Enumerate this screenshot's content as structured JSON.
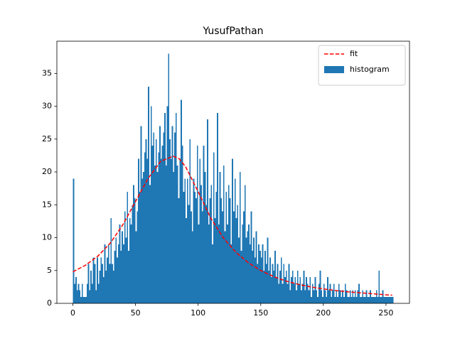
{
  "chart_data": {
    "type": "histogram",
    "title": "YusufPathan",
    "xlim": [
      -12.8,
      268.8
    ],
    "ylim": [
      0,
      39.9
    ],
    "xticks": [
      0,
      50,
      100,
      150,
      200,
      250
    ],
    "yticks": [
      0,
      5,
      10,
      15,
      20,
      25,
      30,
      35
    ],
    "legend": "upper right",
    "series": [
      {
        "name": "histogram",
        "type": "histogram",
        "color": "#1f77b4",
        "bins": [
          0,
          1,
          2,
          3,
          4,
          5,
          6,
          7,
          8,
          9,
          10,
          11,
          12,
          13,
          14,
          15,
          16,
          17,
          18,
          19,
          20,
          21,
          22,
          23,
          24,
          25,
          26,
          27,
          28,
          29,
          30,
          31,
          32,
          33,
          34,
          35,
          36,
          37,
          38,
          39,
          40,
          41,
          42,
          43,
          44,
          45,
          46,
          47,
          48,
          49,
          50,
          51,
          52,
          53,
          54,
          55,
          56,
          57,
          58,
          59,
          60,
          61,
          62,
          63,
          64,
          65,
          66,
          67,
          68,
          69,
          70,
          71,
          72,
          73,
          74,
          75,
          76,
          77,
          78,
          79,
          80,
          81,
          82,
          83,
          84,
          85,
          86,
          87,
          88,
          89,
          90,
          91,
          92,
          93,
          94,
          95,
          96,
          97,
          98,
          99,
          100,
          101,
          102,
          103,
          104,
          105,
          106,
          107,
          108,
          109,
          110,
          111,
          112,
          113,
          114,
          115,
          116,
          117,
          118,
          119,
          120,
          121,
          122,
          123,
          124,
          125,
          126,
          127,
          128,
          129,
          130,
          131,
          132,
          133,
          134,
          135,
          136,
          137,
          138,
          139,
          140,
          141,
          142,
          143,
          144,
          145,
          146,
          147,
          148,
          149,
          150,
          151,
          152,
          153,
          154,
          155,
          156,
          157,
          158,
          159,
          160,
          161,
          162,
          163,
          164,
          165,
          166,
          167,
          168,
          169,
          170,
          171,
          172,
          173,
          174,
          175,
          176,
          177,
          178,
          179,
          180,
          181,
          182,
          183,
          184,
          185,
          186,
          187,
          188,
          189,
          190,
          191,
          192,
          193,
          194,
          195,
          196,
          197,
          198,
          199,
          200,
          201,
          202,
          203,
          204,
          205,
          206,
          207,
          208,
          209,
          210,
          211,
          212,
          213,
          214,
          215,
          216,
          217,
          218,
          219,
          220,
          221,
          222,
          223,
          224,
          225,
          226,
          227,
          228,
          229,
          230,
          231,
          232,
          233,
          234,
          235,
          236,
          237,
          238,
          239,
          240,
          241,
          242,
          243,
          244,
          245,
          246,
          247,
          248,
          249,
          250,
          251,
          252,
          253,
          254,
          255,
          256
        ],
        "values": [
          19,
          3,
          4,
          2,
          3,
          2,
          1,
          3,
          1,
          1,
          1,
          3,
          6,
          2,
          5,
          3,
          7,
          6,
          2,
          7,
          3,
          5,
          7,
          6,
          4,
          9,
          5,
          7,
          9,
          6,
          13,
          6,
          5,
          8,
          10,
          7,
          9,
          12,
          8,
          11,
          9,
          14,
          10,
          17,
          8,
          13,
          12,
          15,
          18,
          16,
          11,
          14,
          22,
          17,
          27,
          19,
          20,
          23,
          25,
          22,
          33,
          18,
          30,
          24,
          26,
          21,
          25,
          20,
          23,
          27,
          22,
          24,
          26,
          29,
          21,
          30,
          38,
          25,
          22,
          27,
          20,
          26,
          29,
          21,
          16,
          22,
          31,
          24,
          17,
          19,
          13,
          19,
          15,
          25,
          14,
          11,
          19,
          17,
          16,
          24,
          12,
          22,
          18,
          14,
          24,
          20,
          15,
          28,
          12,
          16,
          18,
          9,
          23,
          13,
          17,
          29,
          12,
          20,
          16,
          14,
          21,
          11,
          17,
          12,
          18,
          16,
          9,
          22,
          14,
          19,
          13,
          15,
          10,
          20,
          8,
          12,
          14,
          18,
          10,
          11,
          12,
          9,
          14,
          8,
          10,
          7,
          11,
          6,
          9,
          8,
          7,
          9,
          5,
          8,
          6,
          10,
          5,
          7,
          4,
          6,
          5,
          8,
          4,
          6,
          3,
          5,
          7,
          3,
          6,
          4,
          5,
          3,
          6,
          2,
          4,
          5,
          3,
          4,
          2,
          5,
          3,
          4,
          2,
          3,
          5,
          2,
          4,
          3,
          2,
          4,
          1,
          3,
          2,
          4,
          2,
          1,
          3,
          5,
          2,
          1,
          3,
          2,
          1,
          4,
          2,
          3,
          1,
          2,
          3,
          1,
          2,
          1,
          3,
          2,
          1,
          2,
          1,
          3,
          2,
          1,
          1,
          2,
          1,
          2,
          1,
          2,
          1,
          2,
          3,
          1,
          1,
          2,
          1,
          1,
          2,
          1,
          1,
          2,
          1,
          1,
          1,
          1,
          2,
          1,
          5,
          1,
          1,
          2,
          1,
          1,
          1,
          1,
          1,
          1,
          1,
          1
        ]
      },
      {
        "name": "fit",
        "type": "line",
        "color": "#ff0000",
        "dashed": true,
        "x": [
          0,
          10,
          20,
          30,
          40,
          50,
          60,
          70,
          80,
          85,
          90,
          100,
          110,
          120,
          130,
          140,
          150,
          160,
          170,
          180,
          190,
          200,
          210,
          220,
          230,
          240,
          250,
          255
        ],
        "values": [
          4.8,
          5.8,
          7.2,
          9.2,
          12,
          15.5,
          19,
          21.6,
          22.4,
          22,
          20.8,
          17,
          13,
          10,
          7.8,
          6.2,
          5,
          4.1,
          3.4,
          2.9,
          2.5,
          2.2,
          1.95,
          1.75,
          1.6,
          1.45,
          1.3,
          1.25
        ]
      }
    ]
  }
}
